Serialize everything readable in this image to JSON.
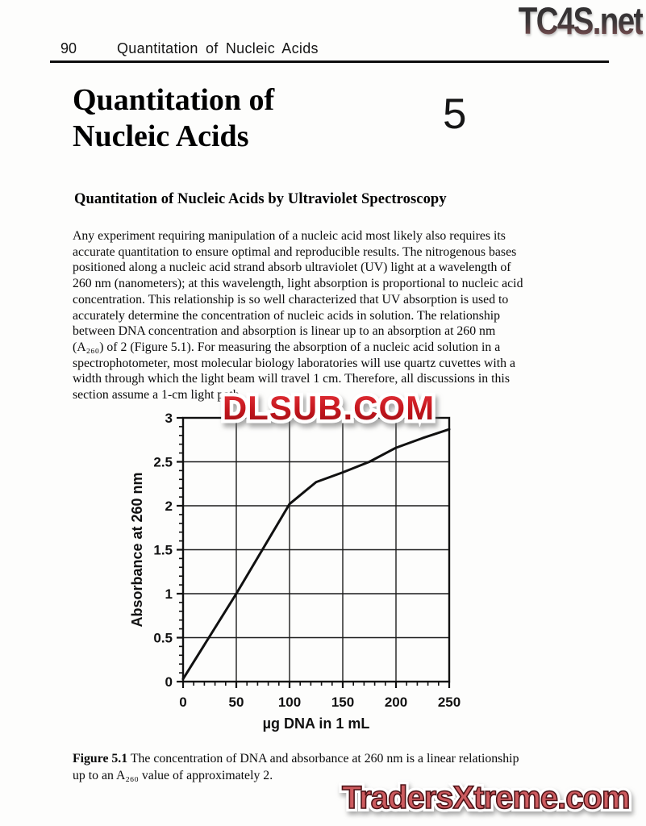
{
  "watermarks": {
    "top_right": "TC4S.net",
    "over_chart": "DLSUB.COM",
    "bottom": "TradersXtreme.com"
  },
  "header": {
    "page_number": "90",
    "running_title": "Quantitation of Nucleic Acids"
  },
  "chapter": {
    "number": "5",
    "title_line1": "Quantitation of",
    "title_line2": "Nucleic Acids"
  },
  "section_heading": "Quantitation of Nucleic Acids by Ultraviolet Spectroscopy",
  "body_paragraph": "Any experiment requiring manipulation of a nucleic acid most likely also requires its\naccurate quantitation to ensure optimal and reproducible results. The nitrogenous bases\npositioned along a nucleic acid strand absorb ultraviolet (UV) light at a wavelength of\n260 nm (nanometers); at this wavelength, light absorption is proportional to nucleic acid\nconcentration. This relationship is so well characterized that UV absorption is used to\naccurately determine the concentration of nucleic acids in solution. The relationship\nbetween DNA concentration and absorption is linear up to an absorption at 260 nm\n(A₂₆₀) of 2 (Figure 5.1). For measuring the absorption of a nucleic acid solution in a\nspectrophotometer, most molecular biology laboratories will use quartz cuvettes with a\nwidth through which the light beam will travel 1 cm. Therefore, all discussions in this\nsection assume a 1-cm light path.",
  "figure_caption": {
    "label": "Figure 5.1",
    "text": " The concentration of DNA and absorbance at 260 nm is a linear relationship\nup to an A₂₆₀ value of approximately 2."
  },
  "chart_data": {
    "type": "line",
    "xlabel": "µg DNA in 1 mL",
    "ylabel": "Absorbance at 260 nm",
    "x": [
      0,
      50,
      100,
      125,
      150,
      175,
      200,
      225,
      250
    ],
    "y": [
      0.03,
      1.0,
      2.02,
      2.27,
      2.38,
      2.5,
      2.66,
      2.77,
      2.87
    ],
    "xlim": [
      0,
      250
    ],
    "ylim": [
      0,
      3
    ],
    "x_tick_labels": [
      "0",
      "50",
      "100",
      "150",
      "200",
      "250"
    ],
    "y_tick_labels": [
      "0",
      "0.5",
      "1",
      "1.5",
      "2",
      "2.5",
      "3"
    ],
    "x_minor_step": 10,
    "y_minor_step": 0.1,
    "grid": true,
    "line_color": "#111111"
  }
}
